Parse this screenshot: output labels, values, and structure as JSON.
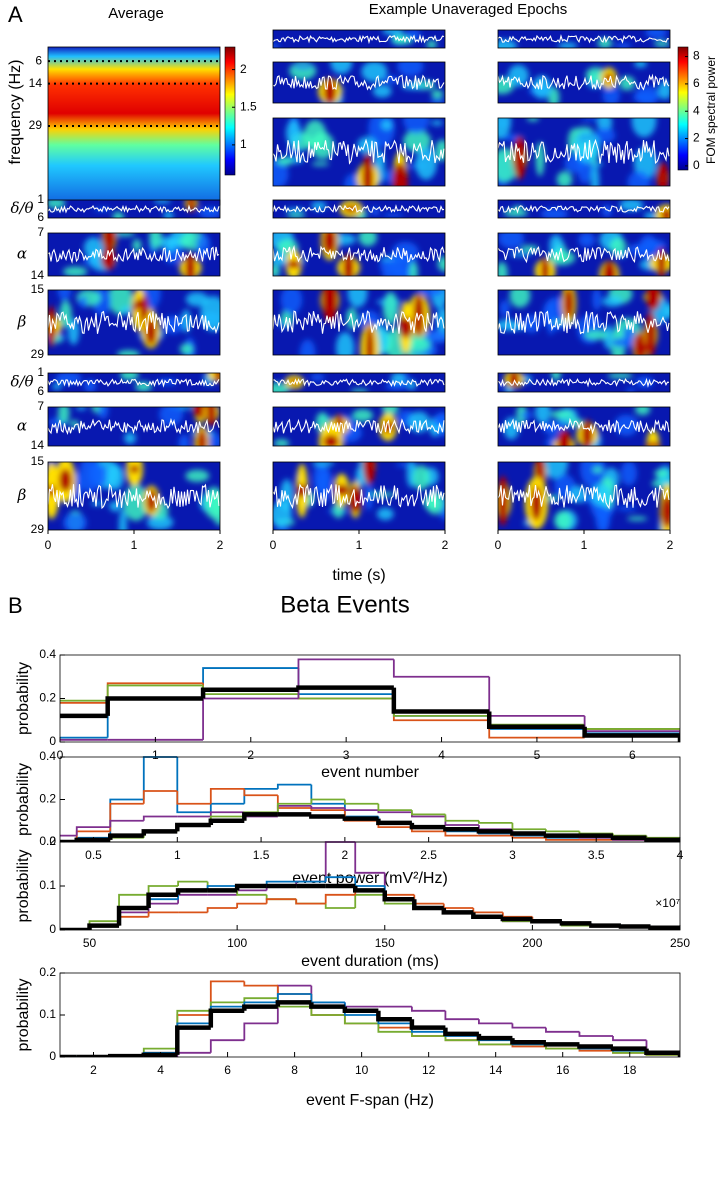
{
  "panel_a": {
    "letter": "A",
    "average_title": "Average",
    "epochs_title": "Example Unaveraged Epochs",
    "frequency_label": "frequency (Hz)",
    "average_ylim": [
      1,
      57
    ],
    "average_yticks": [
      6,
      14,
      29
    ],
    "average_colorbar_clim": [
      0.6,
      2.3
    ],
    "average_colorbar_ticks": [
      1,
      1.5,
      2
    ],
    "epoch_colorbar_clim": [
      -0.3,
      8.7
    ],
    "epoch_colorbar_ticks": [
      0,
      2,
      4,
      6,
      8
    ],
    "colorbar_label": "FOM spectral power",
    "band_labels": [
      "δ/θ",
      "α",
      "β"
    ],
    "band_ticks": [
      [
        1,
        6
      ],
      [
        7,
        14
      ],
      [
        15,
        29
      ]
    ],
    "xlim": [
      0,
      2
    ],
    "xticks": [
      0,
      1,
      2
    ],
    "time_label": "time (s)"
  },
  "panel_b": {
    "letter": "B",
    "title": "Beta Events"
  },
  "chart_data": [
    {
      "type": "histogram",
      "xlabel": "event number",
      "ylabel": "probability",
      "xlim": [
        0,
        6.5
      ],
      "xticks": [
        0,
        1,
        2,
        3,
        4,
        5,
        6
      ],
      "ylim": [
        0,
        0.4
      ],
      "yticks": [
        0,
        0.2,
        0.4
      ],
      "bins": [
        -0.5,
        0.5,
        1.5,
        2.5,
        3.5,
        4.5,
        5.5,
        6.5
      ],
      "series": [
        {
          "color": "#0072bd",
          "values": [
            0.02,
            0.2,
            0.34,
            0.22,
            0.12,
            0.06,
            0.04
          ]
        },
        {
          "color": "#d95319",
          "values": [
            0.18,
            0.27,
            0.24,
            0.2,
            0.1,
            0.02,
            0.06
          ]
        },
        {
          "color": "#77ac30",
          "values": [
            0.19,
            0.26,
            0.22,
            0.2,
            0.12,
            0.08,
            0.06
          ]
        },
        {
          "color": "#7e2f8e",
          "values": [
            0.01,
            0.01,
            0.2,
            0.38,
            0.3,
            0.12,
            0.05
          ]
        },
        {
          "color": "#000000",
          "values": [
            0.12,
            0.2,
            0.24,
            0.25,
            0.14,
            0.07,
            0.03
          ]
        }
      ]
    },
    {
      "type": "histogram",
      "xlabel": "event power (mV²/Hz)",
      "x_exponent_label": "×10⁷",
      "ylabel": "probability",
      "xlim": [
        0.3,
        4
      ],
      "xticks": [
        0.5,
        1,
        1.5,
        2,
        2.5,
        3,
        3.5,
        4
      ],
      "ylim": [
        0,
        0.4
      ],
      "yticks": [
        0,
        0.2,
        0.4
      ],
      "bins": [
        0.2,
        0.4,
        0.6,
        0.8,
        1.0,
        1.2,
        1.4,
        1.6,
        1.8,
        2.0,
        2.2,
        2.4,
        2.6,
        2.8,
        3.0,
        3.2,
        3.4,
        3.6,
        3.8,
        4.0
      ],
      "series": [
        {
          "color": "#0072bd",
          "values": [
            0,
            0.02,
            0.2,
            0.4,
            0.14,
            0.18,
            0.25,
            0.27,
            0.18,
            0.12,
            0.09,
            0.07,
            0.05,
            0.04,
            0.03,
            0.02,
            0.02,
            0.02,
            0.01
          ]
        },
        {
          "color": "#d95319",
          "values": [
            0,
            0.05,
            0.18,
            0.24,
            0.18,
            0.25,
            0.22,
            0.16,
            0.15,
            0.1,
            0.07,
            0.05,
            0.03,
            0.03,
            0.02,
            0.01,
            0.01,
            0.01,
            0.01
          ]
        },
        {
          "color": "#7e2f8e",
          "values": [
            0.03,
            0.07,
            0.1,
            0.12,
            0.12,
            0.14,
            0.12,
            0.17,
            0.16,
            0.15,
            0.14,
            0.12,
            0.08,
            0.06,
            0.04,
            0.03,
            0.02,
            0.01,
            0.01
          ]
        },
        {
          "color": "#77ac30",
          "values": [
            0,
            0.01,
            0.02,
            0.05,
            0.08,
            0.12,
            0.14,
            0.18,
            0.2,
            0.18,
            0.15,
            0.13,
            0.1,
            0.09,
            0.06,
            0.05,
            0.04,
            0.03,
            0.02
          ]
        },
        {
          "color": "#000000",
          "values": [
            0,
            0.01,
            0.03,
            0.05,
            0.08,
            0.1,
            0.13,
            0.13,
            0.12,
            0.11,
            0.09,
            0.07,
            0.06,
            0.05,
            0.04,
            0.03,
            0.03,
            0.02,
            0.01
          ]
        }
      ]
    },
    {
      "type": "histogram",
      "xlabel": "event duration (ms)",
      "ylabel": "probability",
      "xlim": [
        40,
        250
      ],
      "xticks": [
        50,
        100,
        150,
        200,
        250
      ],
      "ylim": [
        0,
        0.2
      ],
      "yticks": [
        0,
        0.1,
        0.2
      ],
      "bins": [
        40,
        50,
        60,
        70,
        80,
        90,
        100,
        110,
        120,
        130,
        140,
        150,
        160,
        170,
        180,
        190,
        200,
        210,
        220,
        230,
        240,
        250
      ],
      "series": [
        {
          "color": "#7e2f8e",
          "values": [
            0,
            0.01,
            0.04,
            0.06,
            0.08,
            0.08,
            0.09,
            0.1,
            0.11,
            0.2,
            0.13,
            0.07,
            0.05,
            0.04,
            0.03,
            0.02,
            0.02,
            0.01,
            0.01,
            0.01,
            0.005
          ]
        },
        {
          "color": "#77ac30",
          "values": [
            0,
            0.02,
            0.08,
            0.1,
            0.11,
            0.09,
            0.08,
            0.07,
            0.06,
            0.05,
            0.08,
            0.06,
            0.05,
            0.04,
            0.03,
            0.02,
            0.02,
            0.01,
            0.01,
            0.01,
            0.005
          ]
        },
        {
          "color": "#d95319",
          "values": [
            0,
            0.01,
            0.03,
            0.04,
            0.04,
            0.05,
            0.06,
            0.07,
            0.06,
            0.08,
            0.09,
            0.08,
            0.06,
            0.05,
            0.04,
            0.03,
            0.02,
            0.015,
            0.01,
            0.01,
            0.005
          ]
        },
        {
          "color": "#0072bd",
          "values": [
            0,
            0.01,
            0.05,
            0.07,
            0.09,
            0.1,
            0.1,
            0.11,
            0.11,
            0.12,
            0.1,
            0.07,
            0.05,
            0.04,
            0.03,
            0.025,
            0.02,
            0.015,
            0.01,
            0.01,
            0.005
          ]
        },
        {
          "color": "#000000",
          "values": [
            0,
            0.01,
            0.05,
            0.08,
            0.09,
            0.09,
            0.1,
            0.1,
            0.1,
            0.1,
            0.09,
            0.07,
            0.05,
            0.04,
            0.03,
            0.025,
            0.02,
            0.015,
            0.01,
            0.008,
            0.005
          ]
        }
      ]
    },
    {
      "type": "histogram",
      "xlabel": "event F-span (Hz)",
      "ylabel": "probability",
      "xlim": [
        1,
        19.5
      ],
      "xticks": [
        2,
        4,
        6,
        8,
        10,
        12,
        14,
        16,
        18
      ],
      "ylim": [
        0,
        0.2
      ],
      "yticks": [
        0,
        0.1,
        0.2
      ],
      "bins": [
        0.5,
        1.5,
        2.5,
        3.5,
        4.5,
        5.5,
        6.5,
        7.5,
        8.5,
        9.5,
        10.5,
        11.5,
        12.5,
        13.5,
        14.5,
        15.5,
        16.5,
        17.5,
        18.5,
        19.5
      ],
      "series": [
        {
          "color": "#7e2f8e",
          "values": [
            0,
            0,
            0,
            0,
            0.01,
            0.04,
            0.08,
            0.17,
            0.13,
            0.12,
            0.12,
            0.11,
            0.09,
            0.08,
            0.07,
            0.06,
            0.05,
            0.04,
            0.01
          ]
        },
        {
          "color": "#d95319",
          "values": [
            0,
            0,
            0.002,
            0.01,
            0.1,
            0.18,
            0.17,
            0.15,
            0.1,
            0.08,
            0.07,
            0.05,
            0.04,
            0.03,
            0.025,
            0.02,
            0.015,
            0.01,
            0.005
          ]
        },
        {
          "color": "#77ac30",
          "values": [
            0,
            0,
            0.003,
            0.02,
            0.11,
            0.13,
            0.14,
            0.12,
            0.1,
            0.08,
            0.06,
            0.05,
            0.04,
            0.03,
            0.03,
            0.02,
            0.02,
            0.01,
            0.005
          ]
        },
        {
          "color": "#0072bd",
          "values": [
            0,
            0,
            0.002,
            0.01,
            0.08,
            0.12,
            0.13,
            0.15,
            0.13,
            0.1,
            0.08,
            0.06,
            0.05,
            0.04,
            0.03,
            0.03,
            0.02,
            0.015,
            0.01
          ]
        },
        {
          "color": "#000000",
          "values": [
            0,
            0,
            0.002,
            0.005,
            0.07,
            0.11,
            0.12,
            0.13,
            0.12,
            0.11,
            0.09,
            0.07,
            0.055,
            0.045,
            0.035,
            0.03,
            0.025,
            0.02,
            0.01
          ]
        }
      ]
    }
  ]
}
